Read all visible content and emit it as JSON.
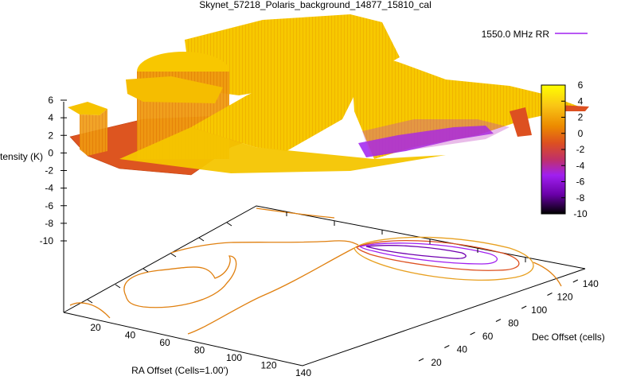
{
  "chart_data": {
    "type": "surface3d",
    "title": "Skynet_57218_Polaris_background_14877_15810_cal",
    "xlabel": "RA Offset (Cells=1.00')",
    "ylabel": "Dec Offset (cells)",
    "zlabel": "Intensity (K)",
    "legend": {
      "placement": "top-right",
      "entries": [
        {
          "name": "1550.0 MHz RR",
          "color": "#a020f0"
        }
      ]
    },
    "x_ticks": [
      20,
      40,
      60,
      80,
      100,
      120,
      140
    ],
    "y_ticks": [
      20,
      40,
      60,
      80,
      100,
      120,
      140
    ],
    "z_ticks": [
      6,
      4,
      2,
      0,
      -2,
      -4,
      -6,
      -8,
      -10
    ],
    "zlim": [
      -10,
      6
    ],
    "colorbar": {
      "ticks": [
        6,
        4,
        2,
        0,
        -2,
        -4,
        -6,
        -8,
        -10
      ],
      "range": [
        -10,
        6
      ],
      "palette": [
        "#ffff00",
        "#f9c515",
        "#ec8a00",
        "#dd5020",
        "#c0306a",
        "#a020f0",
        "#6a00a8",
        "#000000"
      ]
    },
    "surface_levels": {
      "high_plateau": 5.5,
      "mid_plateau": 4.5,
      "base": 2.0,
      "source_dip_min": -3.5
    },
    "colors": {
      "surface_top": "#f5c800",
      "surface_mid": "#ec8a00",
      "surface_base": "#dd5020",
      "source": "#a020f0",
      "contour": "#e08010",
      "axis": "#000000"
    }
  }
}
